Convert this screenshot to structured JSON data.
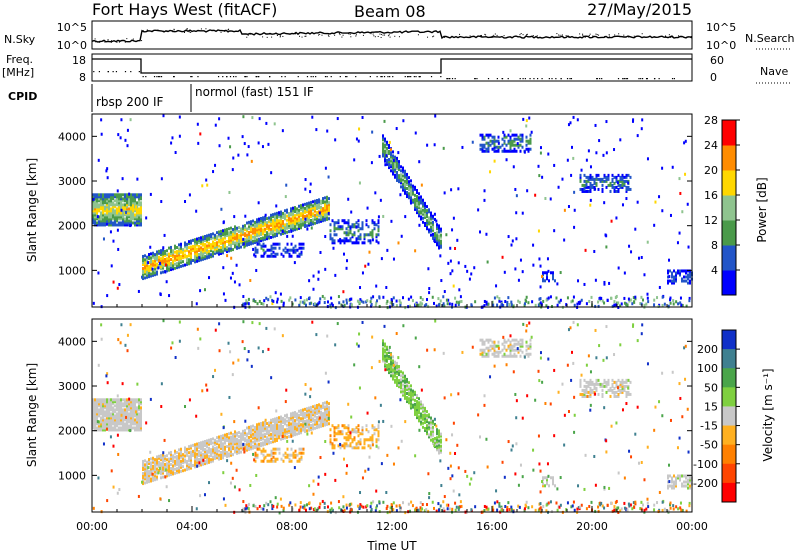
{
  "header": {
    "title": "Fort Hays West (fitACF)",
    "beam": "Beam 08",
    "date": "27/May/2015"
  },
  "strip": {
    "nsky_label": "N.Sky",
    "nsky_top_tick": "10^5",
    "nsky_bottom_tick": "10^0",
    "nsearch_label": "N.Search",
    "freq_label_top": "Freq.",
    "freq_label_bottom": "[MHz]",
    "freq_ticks": [
      "18",
      "8"
    ],
    "nave_ticks": [
      "60",
      "0"
    ],
    "nave_label": "Nave",
    "cpid_label": "CPID",
    "cpid_segments": [
      "rbsp 200 IF",
      "normol (fast) 151 IF"
    ]
  },
  "chart_data": [
    {
      "type": "heatmap",
      "name": "power",
      "ylabel": "Slant Range [km]",
      "xlabel": "",
      "ylim": [
        180,
        4500
      ],
      "yticks": [
        "1000",
        "2000",
        "3000",
        "4000"
      ],
      "colorbar": {
        "label": "Power [dB]",
        "ticks": [
          "4",
          "8",
          "12",
          "16",
          "20",
          "24",
          "28"
        ],
        "colors": [
          "#0000ff",
          "#2255c8",
          "#4a9a4a",
          "#8fc48f",
          "#ffd700",
          "#ff8c00",
          "#ff0000"
        ]
      }
    },
    {
      "type": "heatmap",
      "name": "velocity",
      "ylabel": "Slant Range [km]",
      "xlabel": "Time UT",
      "ylim": [
        180,
        4500
      ],
      "yticks": [
        "1000",
        "2000",
        "3000",
        "4000"
      ],
      "xticks": [
        "00:00",
        "04:00",
        "08:00",
        "12:00",
        "16:00",
        "20:00",
        "00:00"
      ],
      "colorbar": {
        "label": "Velocity [m s⁻¹]",
        "ticks": [
          "200",
          "100",
          "50",
          "15",
          "-15",
          "-50",
          "-100",
          "-200"
        ],
        "colors": [
          "#1030c8",
          "#3f8090",
          "#4aa54a",
          "#7fd040",
          "#c8c8c8",
          "#ffb020",
          "#ff8000",
          "#ff4500",
          "#ff0000"
        ]
      }
    }
  ]
}
